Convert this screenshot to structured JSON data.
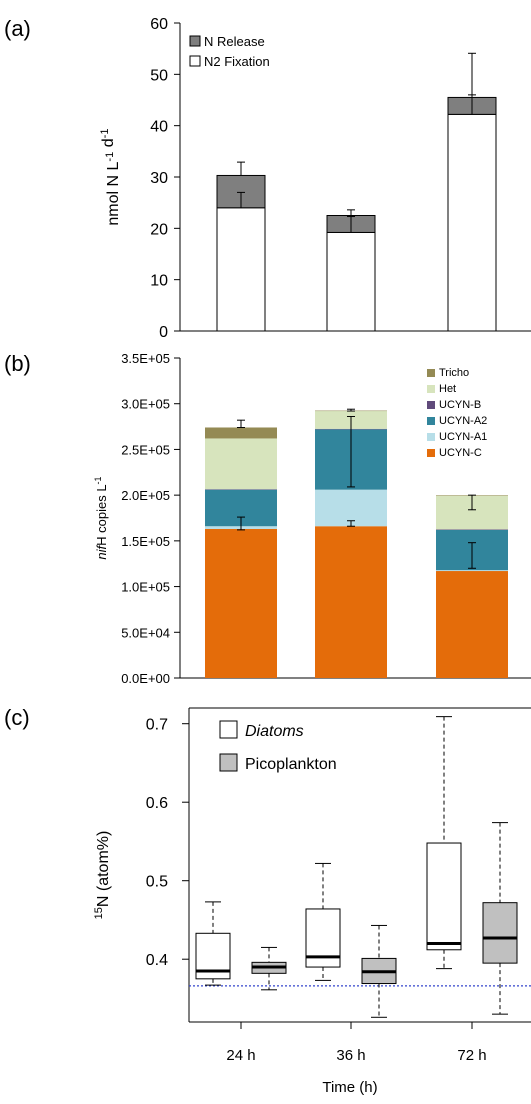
{
  "chart_data": [
    {
      "panel_label": "(a)",
      "type": "bar",
      "stacked": true,
      "categories": [
        "24 h",
        "36 h",
        "72 h"
      ],
      "ylabel": "nmol N L-1 d-1",
      "ylim": [
        0,
        60
      ],
      "yticks": [
        "0",
        "10",
        "20",
        "30",
        "40",
        "50",
        "60"
      ],
      "legend_position": "top-left",
      "series": [
        {
          "name": "N2 Fixation",
          "values": [
            24.0,
            19.2,
            42.2
          ],
          "color": "#ffffff"
        },
        {
          "name": "N Release",
          "values": [
            6.3,
            3.3,
            3.3
          ],
          "color": "#7f7f7f"
        }
      ],
      "error_bars": [
        {
          "center": 24.0,
          "upper": 27.0
        },
        {
          "center": 30.3,
          "upper": 32.9
        },
        {
          "center": 19.2,
          "upper": 22.3
        },
        {
          "center": 22.5,
          "upper": 23.6
        },
        {
          "center": 42.2,
          "upper": 46.0
        },
        {
          "center": 45.5,
          "upper": 54.1
        }
      ]
    },
    {
      "panel_label": "(b)",
      "type": "bar",
      "stacked": true,
      "categories": [
        "24 h",
        "36 h",
        "72 h"
      ],
      "ylabel_italic": "nif",
      "ylabel_rest": "H copies L-1",
      "ylim": [
        0,
        350000
      ],
      "yticks": [
        "0.0E+00",
        "5.0E+04",
        "1.0E+05",
        "1.5E+05",
        "2.0E+05",
        "2.5E+05",
        "3.0E+05",
        "3.5E+05"
      ],
      "legend_position": "top-right",
      "series": [
        {
          "name": "UCYN-C",
          "values": [
            163000,
            166000,
            117000
          ],
          "color": "#e46c0a"
        },
        {
          "name": "UCYN-A1",
          "values": [
            3000,
            40000,
            1000
          ],
          "color": "#b7dee8"
        },
        {
          "name": "UCYN-A2",
          "values": [
            40000,
            66000,
            44000
          ],
          "color": "#31859c"
        },
        {
          "name": "UCYN-B",
          "values": [
            500,
            500,
            500
          ],
          "color": "#604a7b"
        },
        {
          "name": "Het",
          "values": [
            55500,
            19500,
            37000
          ],
          "color": "#d7e4bd"
        },
        {
          "name": "Tricho",
          "values": [
            12000,
            500,
            500
          ],
          "color": "#948a54"
        }
      ],
      "error_bars": [
        {
          "center": 166000,
          "low": 162000,
          "high": 176000
        },
        {
          "center": 274000,
          "low": 274000,
          "high": 282000
        },
        {
          "center": 166000,
          "low": 166000,
          "high": 172000
        },
        {
          "center": 272000,
          "low": 209000,
          "high": 286000
        },
        {
          "center": 292000,
          "low": 292000,
          "high": 294000
        },
        {
          "center": 162000,
          "low": 120000,
          "high": 148000
        },
        {
          "center": 200000,
          "low": 184000,
          "high": 200000
        }
      ]
    },
    {
      "panel_label": "(c)",
      "type": "boxplot",
      "categories": [
        "24 h",
        "36 h",
        "72 h"
      ],
      "xlabel": "Time (h)",
      "ylabel_sup": "15",
      "ylabel_rest": "N (atom%)",
      "ylim": [
        0.32,
        0.72
      ],
      "yticks": [
        "0.4",
        "0.5",
        "0.6",
        "0.7"
      ],
      "reference_line": 0.366,
      "legend_position": "top-left",
      "series": [
        {
          "name": "Diatoms",
          "italic": true,
          "color": "#ffffff",
          "boxes": [
            {
              "min": 0.367,
              "q1": 0.375,
              "median": 0.385,
              "q3": 0.433,
              "max": 0.473
            },
            {
              "min": 0.373,
              "q1": 0.39,
              "median": 0.403,
              "q3": 0.464,
              "max": 0.522
            },
            {
              "min": 0.388,
              "q1": 0.412,
              "median": 0.42,
              "q3": 0.548,
              "max": 0.709
            }
          ]
        },
        {
          "name": "Picoplankton",
          "italic": false,
          "color": "#c0c0c0",
          "boxes": [
            {
              "min": 0.361,
              "q1": 0.382,
              "median": 0.39,
              "q3": 0.396,
              "max": 0.415
            },
            {
              "min": 0.326,
              "q1": 0.369,
              "median": 0.384,
              "q3": 0.401,
              "max": 0.443
            },
            {
              "min": 0.33,
              "q1": 0.395,
              "median": 0.427,
              "q3": 0.472,
              "max": 0.574
            }
          ]
        }
      ]
    }
  ]
}
